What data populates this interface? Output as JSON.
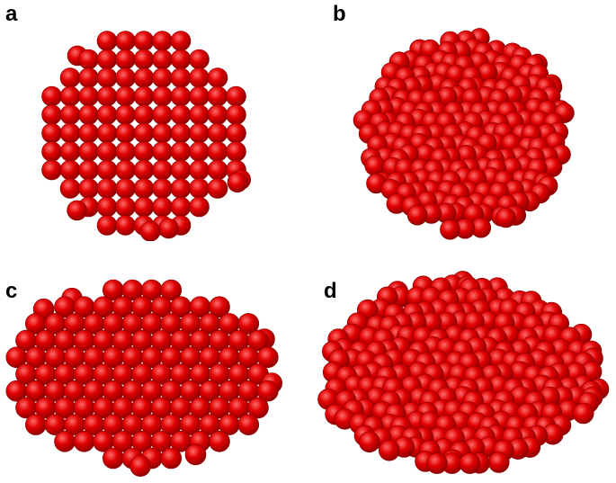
{
  "panels": [
    {
      "id": "a",
      "label": "a",
      "description": "ordered"
    },
    {
      "id": "b",
      "label": "b",
      "description": "disordered"
    },
    {
      "id": "c",
      "label": "c",
      "description": "ordered"
    },
    {
      "id": "d",
      "label": "d",
      "description": "disordered"
    }
  ],
  "colors": {
    "sphere_base": "#e00000",
    "sphere_dark": "#8a0000",
    "sphere_highlight": "#ff6a6a",
    "background": "#ffffff"
  }
}
